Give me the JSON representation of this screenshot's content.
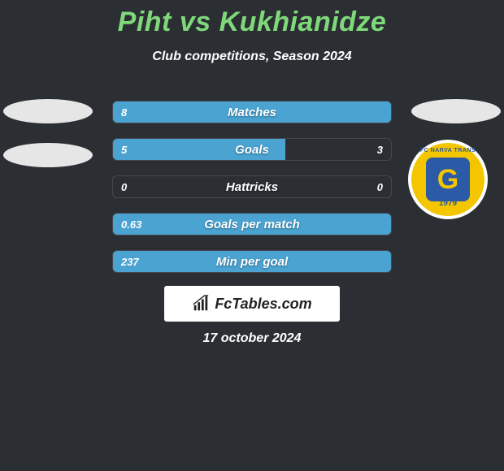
{
  "title_color": "#7fd97a",
  "title": "Piht vs Kukhianidze",
  "subtitle": "Club competitions, Season 2024",
  "background": "#2b2e33",
  "bar_track_border": "#45484e",
  "left_fill_color": "#4aa3d1",
  "right_fill_color": "#4aa3d1",
  "text_color": "#ffffff",
  "logo": {
    "outer_bg": "#f4c600",
    "g_bg": "#2b5aa6",
    "g_color": "#f4c600",
    "letter": "G",
    "year": "1979",
    "arc": "FC NARVA TRANS"
  },
  "bars": [
    {
      "label": "Matches",
      "left_val": "8",
      "right_val": "",
      "left_pct": 100,
      "right_pct": 0
    },
    {
      "label": "Goals",
      "left_val": "5",
      "right_val": "3",
      "left_pct": 62,
      "right_pct": 0
    },
    {
      "label": "Hattricks",
      "left_val": "0",
      "right_val": "0",
      "left_pct": 0,
      "right_pct": 0
    },
    {
      "label": "Goals per match",
      "left_val": "0.63",
      "right_val": "",
      "left_pct": 100,
      "right_pct": 0
    },
    {
      "label": "Min per goal",
      "left_val": "237",
      "right_val": "",
      "left_pct": 100,
      "right_pct": 0
    }
  ],
  "watermark": "FcTables.com",
  "date": "17 october 2024"
}
